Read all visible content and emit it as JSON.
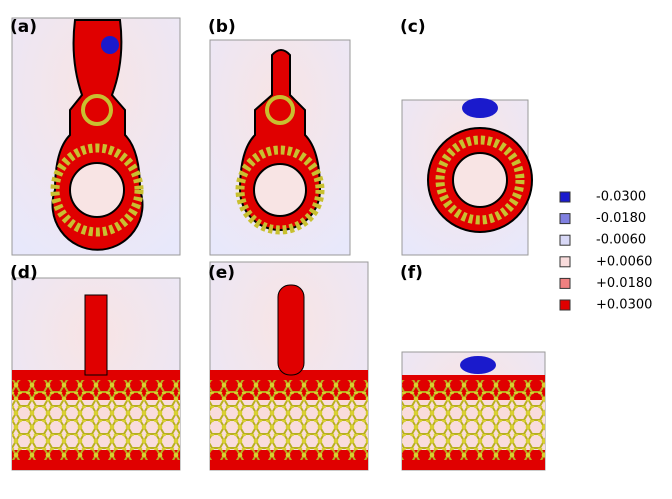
{
  "panels": [
    {
      "label": "(a)"
    },
    {
      "label": "(b)"
    },
    {
      "label": "(c)"
    },
    {
      "label": "(d)"
    },
    {
      "label": "(e)"
    },
    {
      "label": "(f)"
    }
  ],
  "legend": [
    {
      "label": "-0.0300",
      "color": "#1a1acc"
    },
    {
      "label": "-0.0180",
      "color": "#8080e0"
    },
    {
      "label": "-0.0060",
      "color": "#d8d8f6"
    },
    {
      "label": "+0.0060",
      "color": "#f9dcdc"
    },
    {
      "label": "+0.0180",
      "color": "#f08080"
    },
    {
      "label": "+0.0300",
      "color": "#e00000"
    }
  ]
}
